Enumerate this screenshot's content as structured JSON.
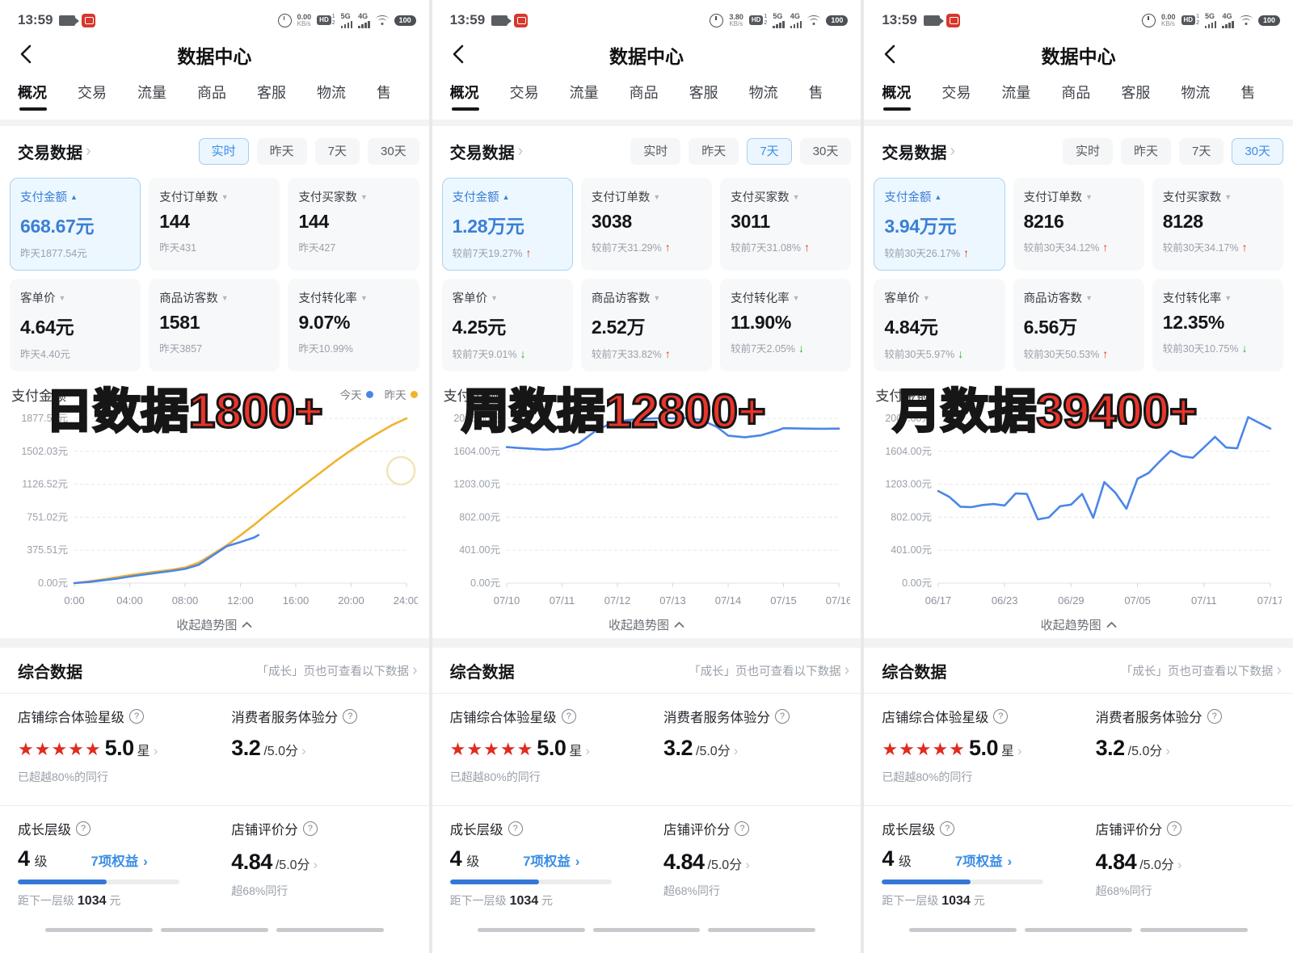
{
  "status_bar": {
    "time": "13:59",
    "kbps_unit": "KB/s",
    "hd": "HD",
    "hd_top": "1",
    "hd_bottom": "2",
    "net_a": "5G",
    "net_b": "4G",
    "battery": "100"
  },
  "header": {
    "title": "数据中心"
  },
  "tabs": [
    "概况",
    "交易",
    "流量",
    "商品",
    "客服",
    "物流",
    "售"
  ],
  "trade": {
    "title": "交易数据",
    "filters": [
      "实时",
      "昨天",
      "7天",
      "30天"
    ]
  },
  "collapse_label": "收起趋势图",
  "panels": [
    {
      "kbps": "0.00",
      "selected_filter": 0,
      "overlay": "日数据1800+",
      "cards": [
        {
          "label": "支付金额",
          "caret": "▲",
          "value": "668.67元",
          "sub": "昨天1877.54元"
        },
        {
          "label": "支付订单数",
          "caret": "▼",
          "value": "144",
          "sub": "昨天431"
        },
        {
          "label": "支付买家数",
          "caret": "▼",
          "value": "144",
          "sub": "昨天427"
        },
        {
          "label": "客单价",
          "caret": "▼",
          "value": "4.64元",
          "sub": "昨天4.40元"
        },
        {
          "label": "商品访客数",
          "caret": "▼",
          "value": "1581",
          "sub": "昨天3857"
        },
        {
          "label": "支付转化率",
          "caret": "▼",
          "value": "9.07%",
          "sub": "昨天10.99%"
        }
      ]
    },
    {
      "kbps": "3.80",
      "selected_filter": 2,
      "overlay": "周数据12800+",
      "cards": [
        {
          "label": "支付金额",
          "caret": "▲",
          "value": "1.28万元",
          "sub": "较前7天19.27%",
          "trend": "↑",
          "dir": "up"
        },
        {
          "label": "支付订单数",
          "caret": "▼",
          "value": "3038",
          "sub": "较前7天31.29%",
          "trend": "↑",
          "dir": "up"
        },
        {
          "label": "支付买家数",
          "caret": "▼",
          "value": "3011",
          "sub": "较前7天31.08%",
          "trend": "↑",
          "dir": "up"
        },
        {
          "label": "客单价",
          "caret": "▼",
          "value": "4.25元",
          "sub": "较前7天9.01%",
          "trend": "↓",
          "dir": "down"
        },
        {
          "label": "商品访客数",
          "caret": "▼",
          "value": "2.52万",
          "sub": "较前7天33.82%",
          "trend": "↑",
          "dir": "up"
        },
        {
          "label": "支付转化率",
          "caret": "▼",
          "value": "11.90%",
          "sub": "较前7天2.05%",
          "trend": "↓",
          "dir": "down"
        }
      ]
    },
    {
      "kbps": "0.00",
      "selected_filter": 3,
      "overlay": "月数据39400+",
      "cards": [
        {
          "label": "支付金额",
          "caret": "▲",
          "value": "3.94万元",
          "sub": "较前30天26.17%",
          "trend": "↑",
          "dir": "up"
        },
        {
          "label": "支付订单数",
          "caret": "▼",
          "value": "8216",
          "sub": "较前30天34.12%",
          "trend": "↑",
          "dir": "up"
        },
        {
          "label": "支付买家数",
          "caret": "▼",
          "value": "8128",
          "sub": "较前30天34.17%",
          "trend": "↑",
          "dir": "up"
        },
        {
          "label": "客单价",
          "caret": "▼",
          "value": "4.84元",
          "sub": "较前30天5.97%",
          "trend": "↓",
          "dir": "down"
        },
        {
          "label": "商品访客数",
          "caret": "▼",
          "value": "6.56万",
          "sub": "较前30天50.53%",
          "trend": "↑",
          "dir": "up"
        },
        {
          "label": "支付转化率",
          "caret": "▼",
          "value": "12.35%",
          "sub": "较前30天10.75%",
          "trend": "↓",
          "dir": "down"
        }
      ]
    }
  ],
  "chart_data": [
    {
      "type": "line",
      "title": "支付金额",
      "legend": [
        {
          "name": "今天",
          "color": "#4a86e8"
        },
        {
          "name": "昨天",
          "color": "#f0b32e"
        }
      ],
      "ylim": [
        0,
        1877.54
      ],
      "y_ticks": [
        "1877.54元",
        "1502.03元",
        "1126.52元",
        "751.02元",
        "375.51元",
        "0.00元"
      ],
      "x_ticks": [
        "0:00",
        "04:00",
        "08:00",
        "12:00",
        "16:00",
        "20:00",
        "24:00"
      ],
      "xmax": 24,
      "ymax": 1877.54,
      "series": [
        {
          "name": "昨天",
          "color": "#f0b32e",
          "x": [
            0,
            1,
            2,
            3,
            4,
            5,
            6,
            7,
            8,
            9,
            10,
            11,
            12,
            13,
            14,
            15,
            16,
            17,
            18,
            19,
            20,
            21,
            22,
            23,
            24
          ],
          "values": [
            0,
            18,
            40,
            65,
            90,
            112,
            132,
            152,
            178,
            235,
            330,
            430,
            545,
            665,
            795,
            920,
            1045,
            1165,
            1285,
            1405,
            1515,
            1620,
            1715,
            1805,
            1877
          ]
        },
        {
          "name": "今天",
          "color": "#4a86e8",
          "x": [
            0,
            1,
            2,
            3,
            4,
            5,
            6,
            7,
            8,
            9,
            10,
            11,
            12,
            13,
            13.3
          ],
          "values": [
            0,
            12,
            30,
            50,
            75,
            97,
            118,
            138,
            162,
            210,
            315,
            420,
            468,
            520,
            548
          ]
        }
      ],
      "ring": {
        "x": 23.6,
        "value": 1280
      }
    },
    {
      "type": "line",
      "title": "支付金额",
      "ylim": [
        0,
        2005
      ],
      "y_ticks": [
        "2005.00元",
        "1604.00元",
        "1203.00元",
        "802.00元",
        "401.00元",
        "0.00元"
      ],
      "x_ticks": [
        "07/10",
        "07/11",
        "07/12",
        "07/13",
        "07/14",
        "07/15",
        "07/16"
      ],
      "xmax": 6,
      "ymax": 2005,
      "series": [
        {
          "name": "支付金额",
          "color": "#4a86e8",
          "x": [
            0,
            0.3,
            0.7,
            1,
            1.3,
            1.6,
            1.9,
            2.2,
            2.5,
            2.8,
            3,
            3.2,
            3.5,
            3.8,
            4,
            4.3,
            4.6,
            4.9,
            5,
            5.4,
            5.7,
            6
          ],
          "values": [
            1655,
            1640,
            1625,
            1635,
            1700,
            1850,
            1950,
            1985,
            2000,
            2008,
            2005,
            2008,
            1990,
            1900,
            1795,
            1775,
            1800,
            1860,
            1885,
            1880,
            1878,
            1880
          ]
        }
      ]
    },
    {
      "type": "line",
      "title": "支付金额",
      "ylim": [
        0,
        2005
      ],
      "y_ticks": [
        "2005.00元",
        "1604.00元",
        "1203.00元",
        "802.00元",
        "401.00元",
        "0.00元"
      ],
      "x_ticks": [
        "06/17",
        "06/23",
        "06/29",
        "07/05",
        "07/11",
        "07/17"
      ],
      "xmax": 30,
      "ymax": 2005,
      "series": [
        {
          "name": "支付金额",
          "color": "#4a86e8",
          "x": [
            0,
            1,
            2,
            3,
            4,
            5,
            6,
            7,
            8,
            9,
            10,
            11,
            12,
            13,
            14,
            15,
            16,
            17,
            18,
            19,
            20,
            21,
            22,
            23,
            24,
            25,
            26,
            27,
            28,
            29,
            30
          ],
          "values": [
            1120,
            1050,
            930,
            925,
            950,
            962,
            945,
            1092,
            1085,
            775,
            800,
            935,
            955,
            1085,
            795,
            1230,
            1100,
            905,
            1270,
            1340,
            1480,
            1610,
            1545,
            1525,
            1650,
            1780,
            1650,
            1640,
            2020,
            1950,
            1880
          ]
        }
      ]
    }
  ],
  "summary": {
    "title": "综合数据",
    "link": "「成长」页也可查看以下数据",
    "star_label": "店铺综合体验星级",
    "stars": "★★★★★",
    "star_value": "5.0",
    "star_unit": "星",
    "star_sub": "已超越80%的同行",
    "service_label": "消费者服务体验分",
    "service_value": "3.2",
    "service_suffix": "/5.0分",
    "growth_label": "成长层级",
    "growth_value": "4",
    "growth_unit": "级",
    "growth_link": "7项权益",
    "growth_progress": "55%",
    "growth_sub_prefix": "距下一层级",
    "growth_sub_value": "1034",
    "growth_sub_unit": "元",
    "rating_label": "店铺评价分",
    "rating_value": "4.84",
    "rating_suffix": "/5.0分",
    "rating_sub": "超68%同行"
  }
}
